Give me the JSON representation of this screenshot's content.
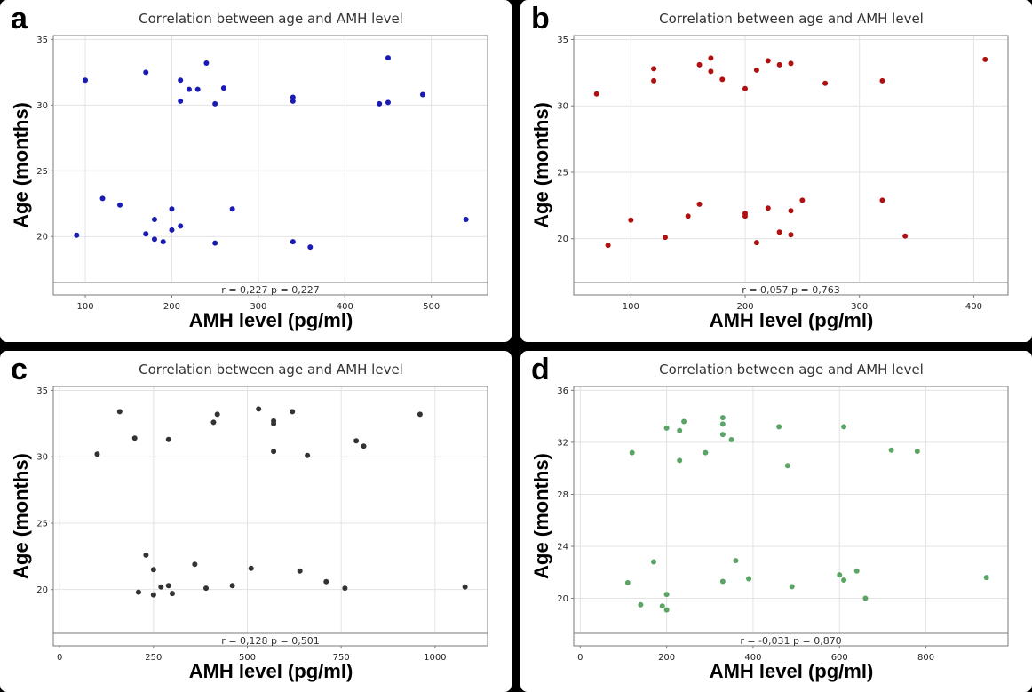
{
  "colors": {
    "background": "#000000",
    "panel": "#ffffff",
    "grid": "#e3e3e3",
    "frame": "#7a7a7a",
    "a": "#1a1ab4",
    "b": "#b01010",
    "c": "#333333",
    "d": "#5aa465"
  },
  "chart_data": [
    {
      "id": "a",
      "type": "scatter",
      "panel_letter": "a",
      "title": "Correlation between age and AMH level",
      "xlabel": "AMH level (pg/ml)",
      "ylabel": "Age (months)",
      "xlim": [
        63,
        565
      ],
      "ylim": [
        16.5,
        35.3
      ],
      "xticks": [
        100,
        200,
        300,
        400,
        500
      ],
      "yticks": [
        20,
        25,
        30,
        35
      ],
      "grid": true,
      "annotation": "r = 0,227  p = 0,227",
      "color": "#1a1ab4",
      "points": [
        [
          100,
          31.9
        ],
        [
          170,
          32.5
        ],
        [
          210,
          31.9
        ],
        [
          220,
          31.2
        ],
        [
          230,
          31.2
        ],
        [
          240,
          33.2
        ],
        [
          260,
          31.3
        ],
        [
          210,
          30.3
        ],
        [
          250,
          30.1
        ],
        [
          340,
          30.6
        ],
        [
          340,
          30.3
        ],
        [
          440,
          30.1
        ],
        [
          450,
          30.2
        ],
        [
          450,
          33.6
        ],
        [
          490,
          30.8
        ],
        [
          90,
          20.1
        ],
        [
          120,
          22.9
        ],
        [
          140,
          22.4
        ],
        [
          200,
          22.1
        ],
        [
          180,
          21.3
        ],
        [
          170,
          20.2
        ],
        [
          180,
          19.8
        ],
        [
          190,
          19.6
        ],
        [
          200,
          20.5
        ],
        [
          210,
          20.8
        ],
        [
          270,
          22.1
        ],
        [
          250,
          19.5
        ],
        [
          340,
          19.6
        ],
        [
          360,
          19.2
        ],
        [
          540,
          21.3
        ]
      ]
    },
    {
      "id": "b",
      "type": "scatter",
      "panel_letter": "b",
      "title": "Correlation between age and AMH level",
      "xlabel": "AMH level (pg/ml)",
      "ylabel": "Age (months)",
      "xlim": [
        50,
        430
      ],
      "ylim": [
        16.7,
        35.3
      ],
      "xticks": [
        100,
        200,
        300,
        400
      ],
      "yticks": [
        20,
        25,
        30,
        35
      ],
      "grid": true,
      "annotation": "r = 0,057  p = 0,763",
      "color": "#b01010",
      "points": [
        [
          70,
          30.9
        ],
        [
          120,
          32.8
        ],
        [
          120,
          31.9
        ],
        [
          160,
          33.1
        ],
        [
          170,
          33.6
        ],
        [
          170,
          32.6
        ],
        [
          180,
          32.0
        ],
        [
          200,
          31.3
        ],
        [
          210,
          32.7
        ],
        [
          220,
          33.4
        ],
        [
          230,
          33.1
        ],
        [
          240,
          33.2
        ],
        [
          270,
          31.7
        ],
        [
          320,
          31.9
        ],
        [
          410,
          33.5
        ],
        [
          80,
          19.5
        ],
        [
          100,
          21.4
        ],
        [
          130,
          20.1
        ],
        [
          150,
          21.7
        ],
        [
          160,
          22.6
        ],
        [
          200,
          21.9
        ],
        [
          200,
          21.7
        ],
        [
          210,
          19.7
        ],
        [
          220,
          22.3
        ],
        [
          230,
          20.5
        ],
        [
          240,
          22.1
        ],
        [
          240,
          20.3
        ],
        [
          250,
          22.9
        ],
        [
          320,
          22.9
        ],
        [
          340,
          20.2
        ]
      ]
    },
    {
      "id": "c",
      "type": "scatter",
      "panel_letter": "c",
      "title": "Correlation between age and AMH level",
      "xlabel": "AMH level (pg/ml)",
      "ylabel": "Age (months)",
      "xlim": [
        -17,
        1140
      ],
      "ylim": [
        16.7,
        35.3
      ],
      "xticks": [
        0,
        250,
        500,
        750,
        1000
      ],
      "yticks": [
        20,
        25,
        30,
        35
      ],
      "grid": true,
      "annotation": "r = 0,128  p = 0,501",
      "color": "#333333",
      "points": [
        [
          100,
          30.2
        ],
        [
          160,
          33.4
        ],
        [
          200,
          31.4
        ],
        [
          290,
          31.3
        ],
        [
          420,
          33.2
        ],
        [
          410,
          32.6
        ],
        [
          530,
          33.6
        ],
        [
          570,
          32.7
        ],
        [
          570,
          32.5
        ],
        [
          570,
          30.4
        ],
        [
          620,
          33.4
        ],
        [
          660,
          30.1
        ],
        [
          790,
          31.2
        ],
        [
          810,
          30.8
        ],
        [
          960,
          33.2
        ],
        [
          230,
          22.6
        ],
        [
          250,
          21.5
        ],
        [
          210,
          19.8
        ],
        [
          250,
          19.6
        ],
        [
          270,
          20.2
        ],
        [
          290,
          20.3
        ],
        [
          300,
          19.7
        ],
        [
          360,
          21.9
        ],
        [
          390,
          20.1
        ],
        [
          460,
          20.3
        ],
        [
          510,
          21.6
        ],
        [
          640,
          21.4
        ],
        [
          710,
          20.6
        ],
        [
          760,
          20.1
        ],
        [
          1080,
          20.2
        ]
      ]
    },
    {
      "id": "d",
      "type": "scatter",
      "panel_letter": "d",
      "title": "Correlation between age and AMH level",
      "xlabel": "AMH level (pg/ml)",
      "ylabel": "Age (months)",
      "xlim": [
        -15,
        990
      ],
      "ylim": [
        17.3,
        36.3
      ],
      "xticks": [
        0,
        200,
        400,
        600,
        800
      ],
      "yticks": [
        20,
        24,
        28,
        32,
        36
      ],
      "grid": true,
      "annotation": "r = -0,031  p = 0,870",
      "color": "#5aa465",
      "points": [
        [
          120,
          31.2
        ],
        [
          200,
          33.1
        ],
        [
          230,
          32.9
        ],
        [
          240,
          33.6
        ],
        [
          230,
          30.6
        ],
        [
          290,
          31.2
        ],
        [
          330,
          33.9
        ],
        [
          330,
          33.4
        ],
        [
          330,
          32.6
        ],
        [
          350,
          32.2
        ],
        [
          460,
          33.2
        ],
        [
          480,
          30.2
        ],
        [
          610,
          33.2
        ],
        [
          720,
          31.4
        ],
        [
          780,
          31.3
        ],
        [
          110,
          21.2
        ],
        [
          170,
          22.8
        ],
        [
          200,
          20.3
        ],
        [
          140,
          19.5
        ],
        [
          190,
          19.4
        ],
        [
          200,
          19.1
        ],
        [
          330,
          21.3
        ],
        [
          360,
          22.9
        ],
        [
          390,
          21.5
        ],
        [
          490,
          20.9
        ],
        [
          600,
          21.8
        ],
        [
          610,
          21.4
        ],
        [
          640,
          22.1
        ],
        [
          660,
          20.0
        ],
        [
          940,
          21.6
        ]
      ]
    }
  ]
}
